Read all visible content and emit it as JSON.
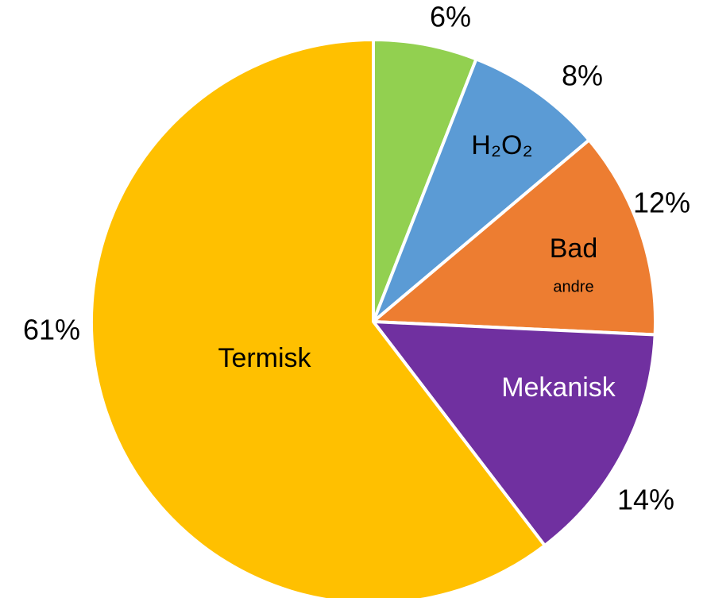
{
  "chart_data": {
    "type": "pie",
    "categories": [
      null,
      "H₂O₂",
      "Bad",
      "Mekanisk",
      "Termisk"
    ],
    "category_notes": [
      null,
      null,
      "andre",
      null,
      null
    ],
    "values": [
      6,
      8,
      12,
      14,
      61
    ],
    "value_labels": [
      "6%",
      "8%",
      "12%",
      "14%",
      "61%"
    ],
    "colors": [
      "#92d050",
      "#5b9bd5",
      "#ed7d31",
      "#7030a0",
      "#ffc000"
    ],
    "label_colors": [
      "#000000",
      "#000000",
      "#000000",
      "#ffffff",
      "#000000"
    ]
  }
}
